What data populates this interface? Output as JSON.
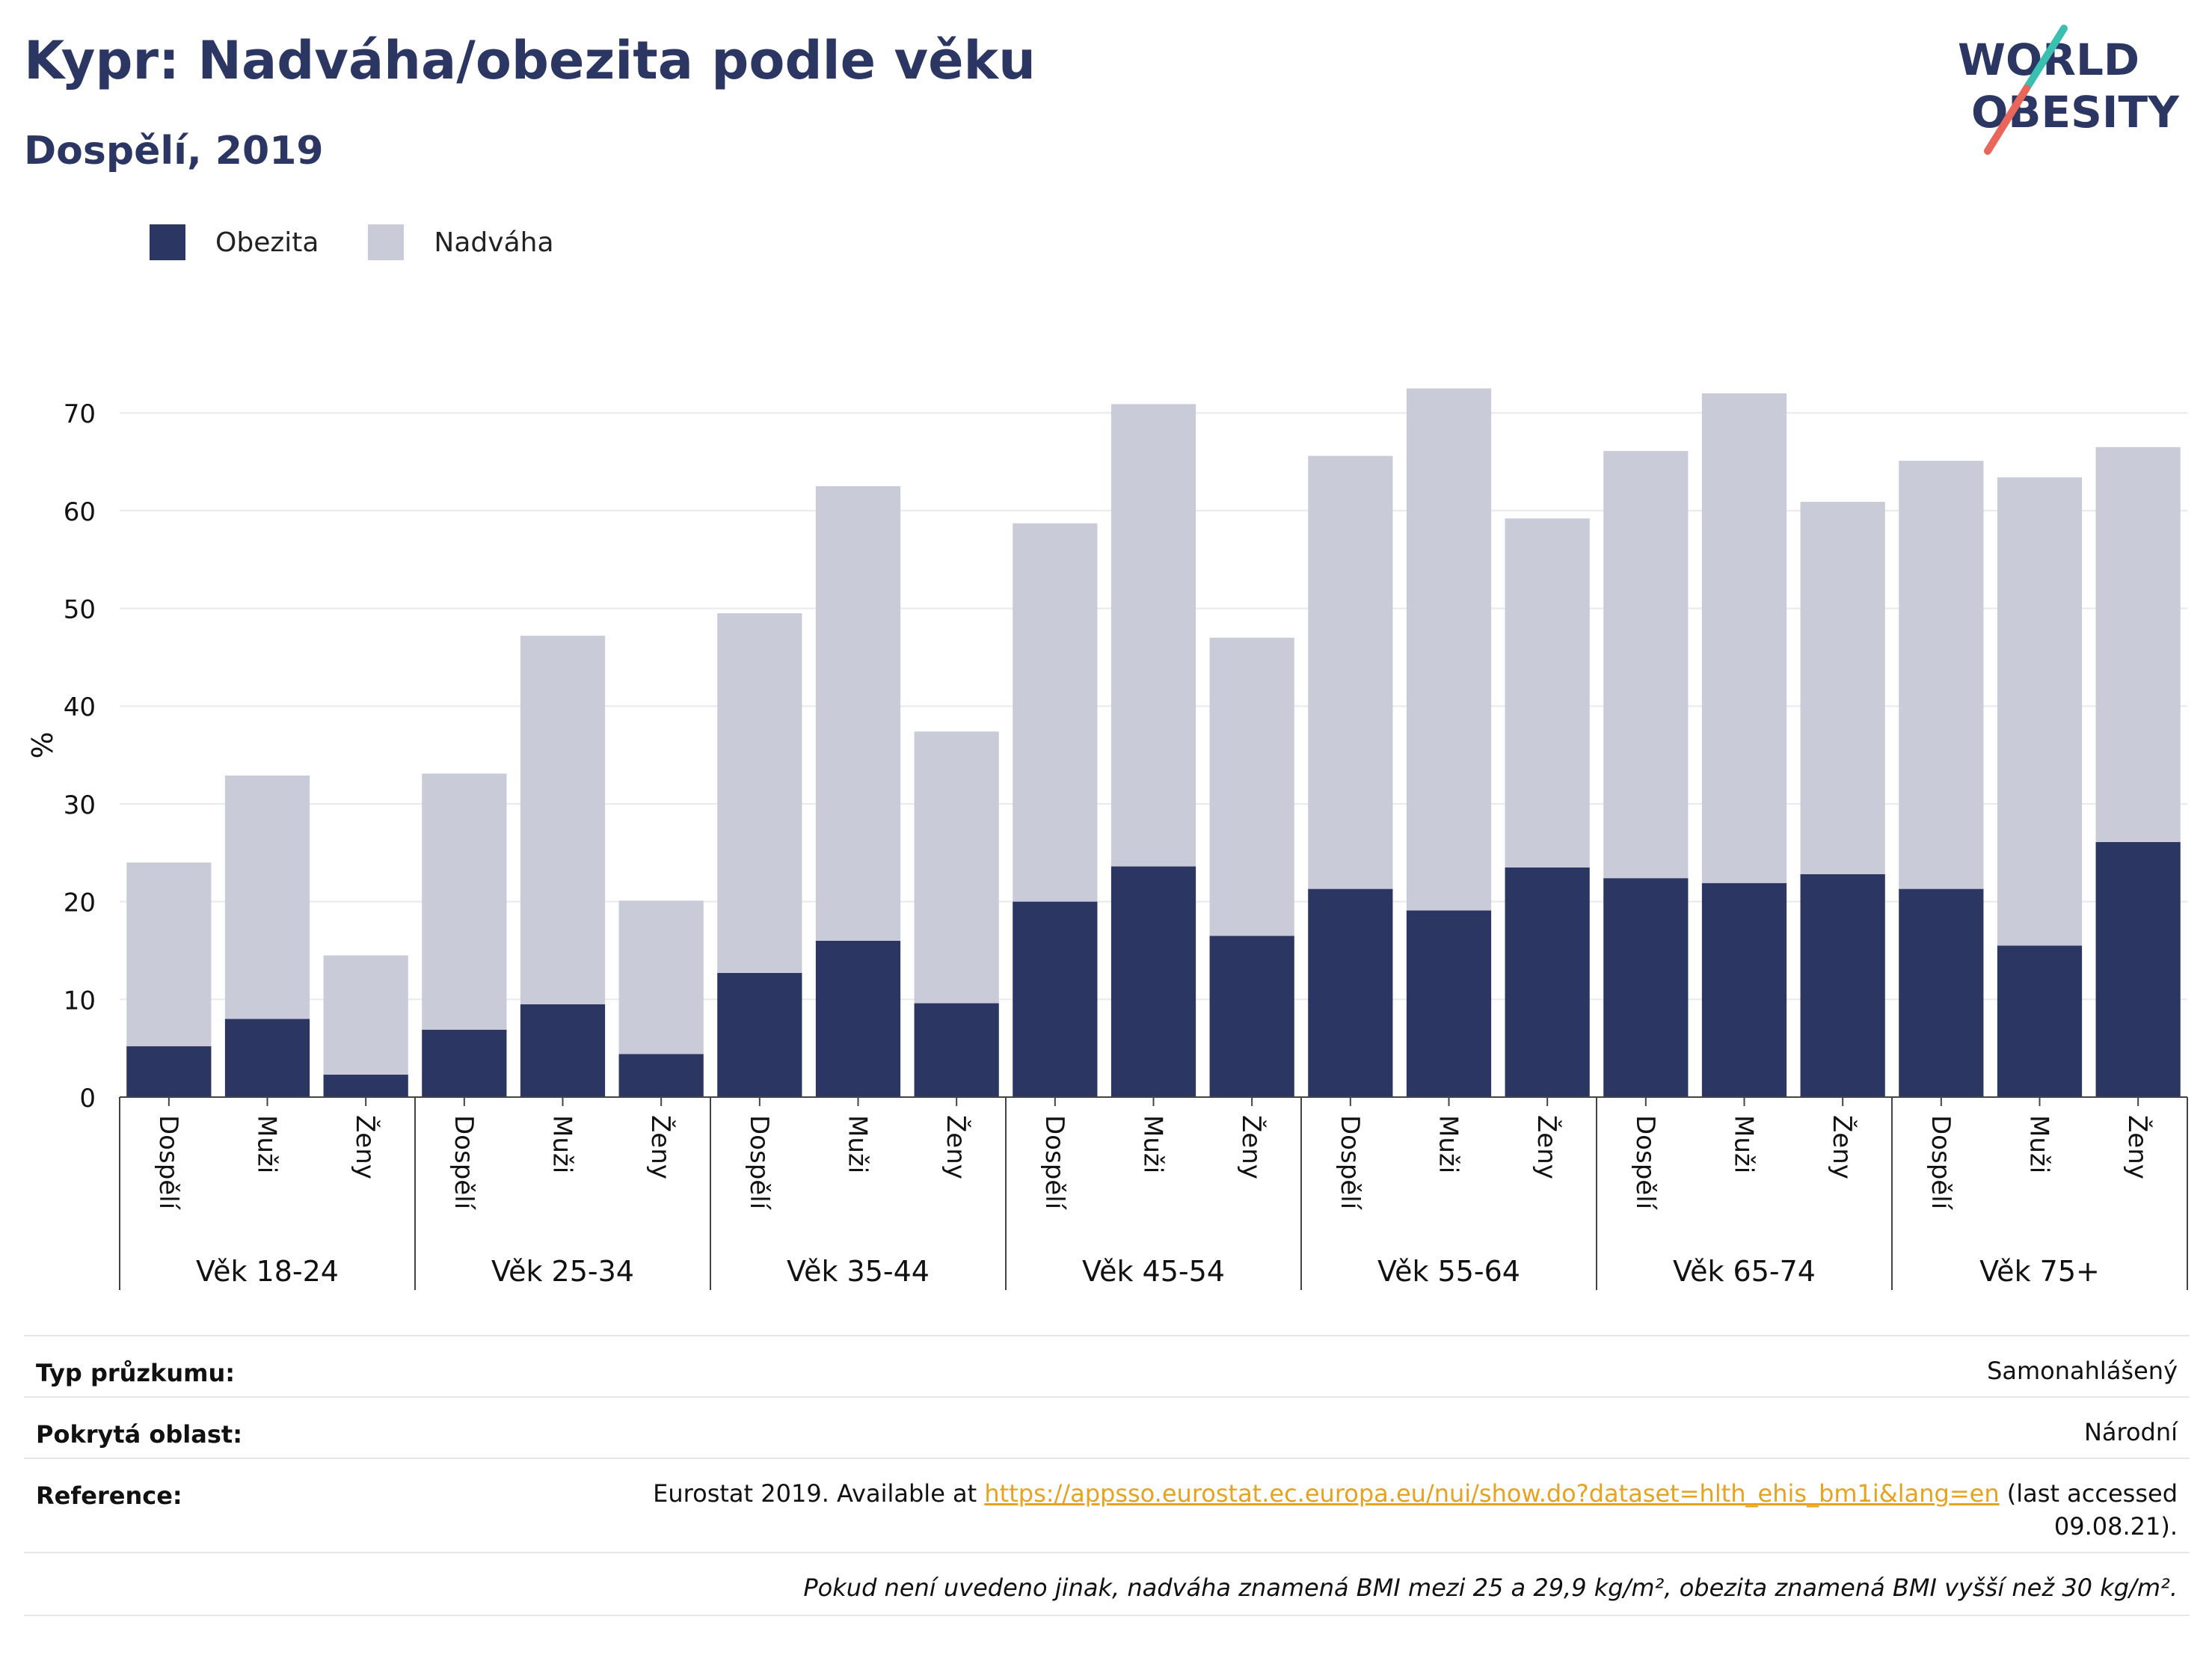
{
  "title": "Kypr: Nadváha/obezita podle věku",
  "subtitle": "Dospělí, 2019",
  "logo": {
    "line1": "WORLD",
    "line2": "OBESITY",
    "colors": {
      "text": "#2b3663",
      "slash_top": "#3bbfb0",
      "slash_bottom": "#e9675a"
    }
  },
  "legend": [
    {
      "label": "Obezita",
      "color": "#2b3663"
    },
    {
      "label": "Nadváha",
      "color": "#c9cbd8"
    }
  ],
  "chart_data": {
    "type": "bar",
    "stacked": true,
    "ylabel": "%",
    "ylim": [
      0,
      75
    ],
    "yticks": [
      0,
      10,
      20,
      30,
      40,
      50,
      60,
      70
    ],
    "grid": true,
    "legend_position": "top-left",
    "groups": [
      {
        "label": "Věk 18-24",
        "categories": [
          "Dospělí",
          "Muži",
          "Ženy"
        ]
      },
      {
        "label": "Věk 25-34",
        "categories": [
          "Dospělí",
          "Muži",
          "Ženy"
        ]
      },
      {
        "label": "Věk 35-44",
        "categories": [
          "Dospělí",
          "Muži",
          "Ženy"
        ]
      },
      {
        "label": "Věk 45-54",
        "categories": [
          "Dospělí",
          "Muži",
          "Ženy"
        ]
      },
      {
        "label": "Věk 55-64",
        "categories": [
          "Dospělí",
          "Muži",
          "Ženy"
        ]
      },
      {
        "label": "Věk 65-74",
        "categories": [
          "Dospělí",
          "Muži",
          "Ženy"
        ]
      },
      {
        "label": "Věk 75+",
        "categories": [
          "Dospělí",
          "Muži",
          "Ženy"
        ]
      }
    ],
    "series": [
      {
        "name": "Obezita",
        "color": "#2b3663",
        "values": [
          5.2,
          8.0,
          2.3,
          6.9,
          9.5,
          4.4,
          12.7,
          16.0,
          9.6,
          20.0,
          23.6,
          16.5,
          21.3,
          19.1,
          23.5,
          22.4,
          21.9,
          22.8,
          21.3,
          15.5,
          26.1
        ]
      },
      {
        "name": "Nadváha",
        "color": "#c9cbd8",
        "values": [
          18.8,
          24.9,
          12.2,
          26.2,
          37.7,
          15.7,
          36.8,
          46.5,
          27.8,
          38.7,
          47.3,
          30.5,
          44.3,
          53.4,
          35.7,
          43.7,
          50.1,
          38.1,
          43.8,
          47.9,
          40.4
        ]
      }
    ]
  },
  "info": {
    "survey_type": {
      "label": "Typ průzkumu:",
      "value": "Samonahlášený"
    },
    "coverage": {
      "label": "Pokrytá oblast:",
      "value": "Národní"
    },
    "reference": {
      "label": "Reference:",
      "prefix": "Eurostat 2019. Available at ",
      "link": "https://appsso.eurostat.ec.europa.eu/nui/show.do?dataset=hlth_ehis_bm1i&lang=en",
      "suffix_line1": " (last accessed",
      "suffix_line2": "09.08.21)."
    },
    "note": "Pokud není uvedeno jinak, nadváha znamená BMI mezi 25 a 29,9 kg/m², obezita znamená BMI vyšší než 30 kg/m²."
  }
}
